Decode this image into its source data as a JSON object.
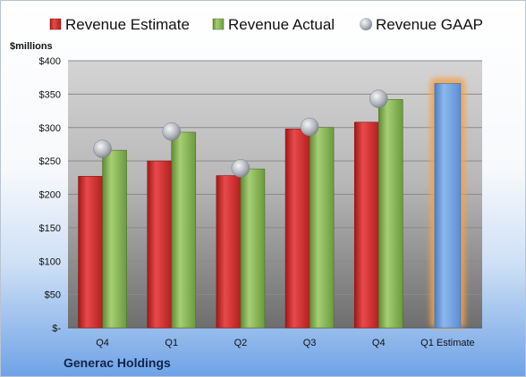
{
  "chart_data": {
    "type": "bar",
    "title": "",
    "unit_label": "$millions",
    "company": "Generac Holdings",
    "categories": [
      "Q4",
      "Q1",
      "Q2",
      "Q3",
      "Q4",
      "Q1 Estimate"
    ],
    "yticks": [
      "$-",
      "$50",
      "$100",
      "$150",
      "$200",
      "$250",
      "$300",
      "$350",
      "$400"
    ],
    "ylim": [
      0,
      400
    ],
    "legend": {
      "placement": "top",
      "entries": [
        "Revenue Estimate",
        "Revenue Actual",
        "Revenue GAAP"
      ]
    },
    "series": [
      {
        "name": "Revenue Estimate",
        "color": "#d42b2b",
        "values": [
          227,
          250,
          228,
          298,
          308,
          366
        ]
      },
      {
        "name": "Revenue Actual",
        "color": "#8db85a",
        "values": [
          266,
          293,
          238,
          300,
          342,
          null
        ]
      },
      {
        "name": "Revenue GAAP",
        "color": "#b8bcc4",
        "values": [
          268,
          294,
          239,
          301,
          343,
          null
        ]
      }
    ],
    "highlight": {
      "category_index": 5,
      "bar_color": "#6b9fdf",
      "glow_color": "#f5a34a"
    },
    "grid": true
  }
}
